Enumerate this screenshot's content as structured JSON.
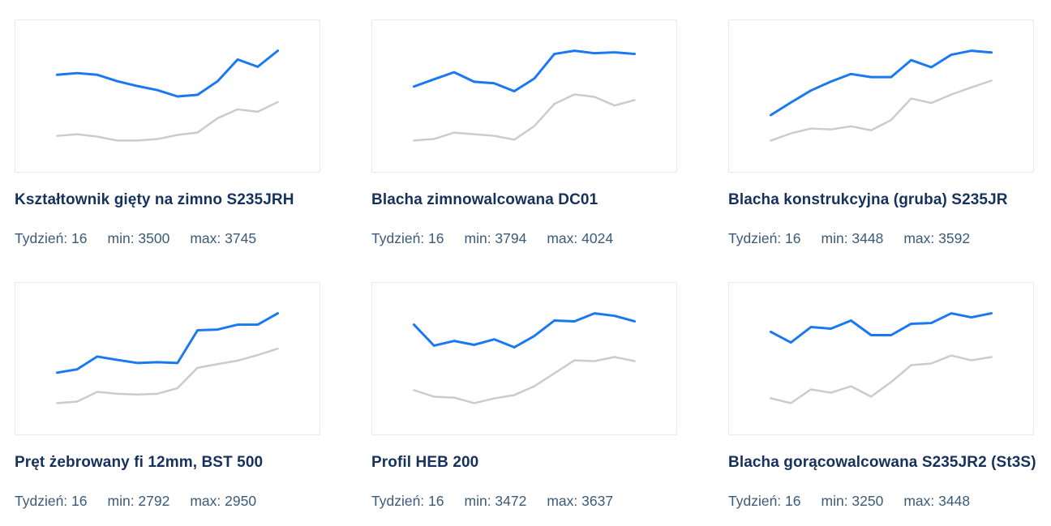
{
  "colors": {
    "line_blue": "#1a78f0",
    "line_gray": "#cbcbcb",
    "title_navy": "#16325c",
    "stats_slate": "#3c5a78",
    "card_border": "#e9e9e9",
    "background": "#ffffff"
  },
  "cards": [
    {
      "title": "Kształtownik gięty na zimno S235JRH",
      "week_label": "Tydzień: 16",
      "min_label": "min: 3500",
      "max_label": "max: 3745"
    },
    {
      "title": "Blacha zimnowalcowana DC01",
      "week_label": "Tydzień: 16",
      "min_label": "min: 3794",
      "max_label": "max: 4024"
    },
    {
      "title": "Blacha konstrukcyjna (gruba) S235JR",
      "week_label": "Tydzień: 16",
      "min_label": "min: 3448",
      "max_label": "max: 3592"
    },
    {
      "title": "Pręt żebrowany fi 12mm, BST 500",
      "week_label": "Tydzień: 16",
      "min_label": "min: 2792",
      "max_label": "max: 2950"
    },
    {
      "title": "Profil HEB 200",
      "week_label": "Tydzień: 16",
      "min_label": "min: 3472",
      "max_label": "max: 3637"
    },
    {
      "title": "Blacha gorącowalcowana S235JR2 (St3S)",
      "week_label": "Tydzień: 16",
      "min_label": "min: 3250",
      "max_label": "max: 3448"
    }
  ],
  "chart_data": [
    {
      "type": "line",
      "title": "Kształtownik gięty na zimno S235JRH",
      "week": 16,
      "min": 3500,
      "max": 3745,
      "x": [
        1,
        2,
        3,
        4,
        5,
        6,
        7,
        8,
        9,
        10,
        11,
        12
      ],
      "axes_hidden": true,
      "legend": "none",
      "series": [
        {
          "name": "blue",
          "color": "#1a78f0",
          "values": [
            3616,
            3625,
            3616,
            3582,
            3556,
            3534,
            3500,
            3509,
            3582,
            3698,
            3659,
            3745
          ]
        },
        {
          "name": "gray",
          "color": "#cbcbcb",
          "values": [
            3289,
            3298,
            3285,
            3264,
            3264,
            3272,
            3294,
            3307,
            3384,
            3431,
            3418,
            3470
          ]
        }
      ]
    },
    {
      "type": "line",
      "title": "Blacha zimnowalcowana DC01",
      "week": 16,
      "min": 3794,
      "max": 4024,
      "x": [
        1,
        2,
        3,
        4,
        5,
        6,
        7,
        8,
        9,
        10,
        11,
        12
      ],
      "axes_hidden": true,
      "legend": "none",
      "series": [
        {
          "name": "blue",
          "color": "#1a78f0",
          "values": [
            3821,
            3862,
            3902,
            3848,
            3839,
            3794,
            3866,
            4006,
            4024,
            4010,
            4015,
            4006
          ]
        },
        {
          "name": "gray",
          "color": "#cbcbcb",
          "values": [
            3514,
            3523,
            3559,
            3550,
            3541,
            3519,
            3596,
            3722,
            3776,
            3762,
            3713,
            3744
          ]
        }
      ]
    },
    {
      "type": "line",
      "title": "Blacha konstrukcyjna (gruba) S235JR",
      "week": 16,
      "min": 3448,
      "max": 3592,
      "x": [
        1,
        2,
        3,
        4,
        5,
        6,
        7,
        8,
        9,
        10,
        11,
        12
      ],
      "axes_hidden": true,
      "legend": "none",
      "series": [
        {
          "name": "blue",
          "color": "#1a78f0",
          "values": [
            3448,
            3476,
            3503,
            3523,
            3540,
            3533,
            3533,
            3571,
            3555,
            3583,
            3592,
            3588
          ]
        },
        {
          "name": "gray",
          "color": "#cbcbcb",
          "values": [
            3391,
            3407,
            3418,
            3416,
            3423,
            3414,
            3437,
            3485,
            3475,
            3494,
            3510,
            3525
          ]
        }
      ]
    },
    {
      "type": "line",
      "title": "Pręt żebrowany fi 12mm, BST 500",
      "week": 16,
      "min": 2792,
      "max": 2950,
      "x": [
        1,
        2,
        3,
        4,
        5,
        6,
        7,
        8,
        9,
        10,
        11,
        12
      ],
      "axes_hidden": true,
      "legend": "none",
      "series": [
        {
          "name": "blue",
          "color": "#1a78f0",
          "values": [
            2792,
            2801,
            2835,
            2826,
            2818,
            2820,
            2818,
            2905,
            2907,
            2920,
            2920,
            2950
          ]
        },
        {
          "name": "gray",
          "color": "#cbcbcb",
          "values": [
            2711,
            2715,
            2741,
            2736,
            2734,
            2736,
            2751,
            2805,
            2815,
            2824,
            2839,
            2856
          ]
        }
      ]
    },
    {
      "type": "line",
      "title": "Profil HEB 200",
      "week": 16,
      "min": 3472,
      "max": 3637,
      "x": [
        1,
        2,
        3,
        4,
        5,
        6,
        7,
        8,
        9,
        10,
        11,
        12
      ],
      "axes_hidden": true,
      "legend": "none",
      "series": [
        {
          "name": "blue",
          "color": "#1a78f0",
          "values": [
            3582,
            3480,
            3503,
            3484,
            3511,
            3472,
            3527,
            3602,
            3598,
            3637,
            3625,
            3598
          ]
        },
        {
          "name": "gray",
          "color": "#cbcbcb",
          "values": [
            3264,
            3232,
            3228,
            3201,
            3224,
            3240,
            3283,
            3346,
            3409,
            3405,
            3425,
            3405
          ]
        }
      ]
    },
    {
      "type": "line",
      "title": "Blacha gorącowalcowana S235JR2 (St3S)",
      "week": 16,
      "min": 3250,
      "max": 3448,
      "x": [
        1,
        2,
        3,
        4,
        5,
        6,
        7,
        8,
        9,
        10,
        11,
        12
      ],
      "axes_hidden": true,
      "legend": "none",
      "series": [
        {
          "name": "blue",
          "color": "#1a78f0",
          "values": [
            3322,
            3250,
            3355,
            3344,
            3399,
            3300,
            3300,
            3377,
            3382,
            3448,
            3421,
            3448
          ]
        },
        {
          "name": "gray",
          "color": "#cbcbcb",
          "values": [
            2871,
            2838,
            2931,
            2909,
            2953,
            2882,
            2981,
            3096,
            3107,
            3162,
            3129,
            3151
          ]
        }
      ]
    }
  ]
}
